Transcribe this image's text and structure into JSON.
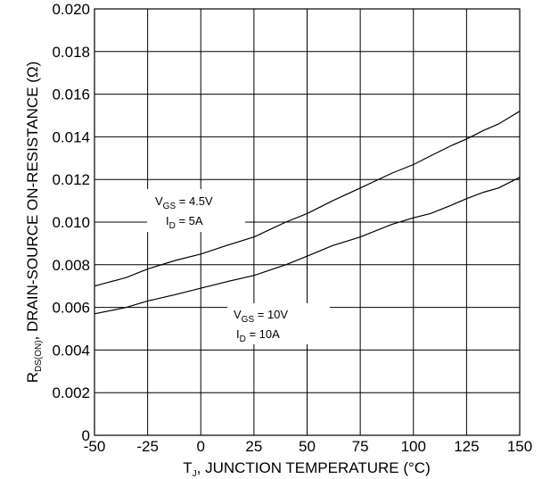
{
  "chart_data": {
    "type": "line",
    "title": "",
    "xlabel": {
      "main": "T",
      "sub": "J",
      "rest": ", JUNCTION TEMPERATURE (°C)"
    },
    "ylabel": {
      "main": "R",
      "sub": "DS(ON)",
      "rest": ", DRAIN-SOURCE ON-RESISTANCE (Ω)"
    },
    "xlim": [
      -50,
      150
    ],
    "ylim": [
      0,
      0.02
    ],
    "x_ticks": [
      "-50",
      "-25",
      "0",
      "25",
      "50",
      "75",
      "100",
      "125",
      "150"
    ],
    "y_ticks": [
      "0",
      "0.002",
      "0.004",
      "0.006",
      "0.008",
      "0.010",
      "0.012",
      "0.014",
      "0.016",
      "0.018",
      "0.020"
    ],
    "grid": true,
    "series": [
      {
        "annotation": {
          "line1_main": "V",
          "line1_sub": "GS",
          "line1_rest": " = 4.5V",
          "line2_main": "I",
          "line2_sub": "D",
          "line2_rest": " = 5A"
        },
        "x": [
          -50,
          -35,
          -25,
          -12,
          0,
          12,
          25,
          40,
          50,
          62,
          75,
          90,
          100,
          108,
          118,
          125,
          133,
          140,
          150
        ],
        "y": [
          0.007,
          0.0074,
          0.0078,
          0.0082,
          0.0085,
          0.0089,
          0.0093,
          0.01,
          0.0104,
          0.011,
          0.0116,
          0.0123,
          0.0127,
          0.0131,
          0.0136,
          0.0139,
          0.0143,
          0.0146,
          0.0152
        ]
      },
      {
        "annotation": {
          "line1_main": "V",
          "line1_sub": "GS",
          "line1_rest": " = 10V",
          "line2_main": "I",
          "line2_sub": "D",
          "line2_rest": " = 10A"
        },
        "x": [
          -50,
          -35,
          -25,
          -12,
          0,
          12,
          25,
          40,
          50,
          62,
          75,
          90,
          100,
          108,
          118,
          125,
          133,
          140,
          150
        ],
        "y": [
          0.0057,
          0.006,
          0.0063,
          0.0066,
          0.0069,
          0.0072,
          0.0075,
          0.008,
          0.0084,
          0.0089,
          0.0093,
          0.0099,
          0.0102,
          0.0104,
          0.0108,
          0.0111,
          0.0114,
          0.0116,
          0.0121
        ]
      }
    ]
  }
}
